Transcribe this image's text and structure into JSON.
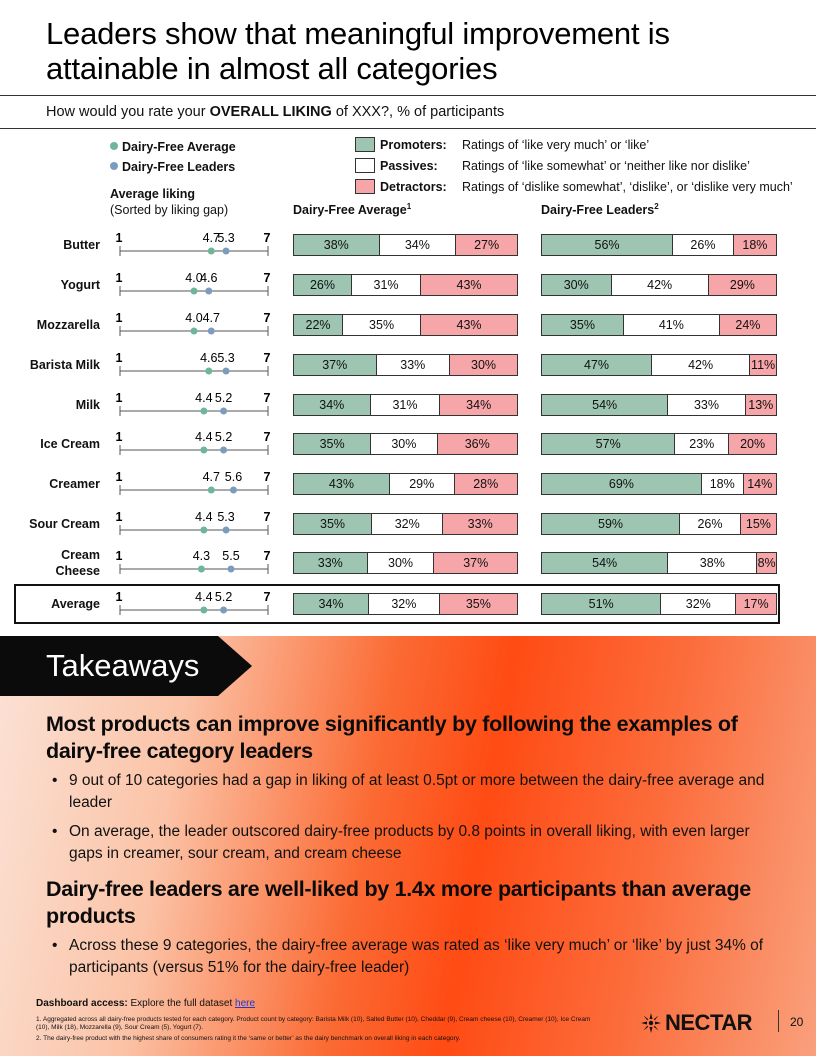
{
  "title": "Leaders show that meaningful improvement is attainable in almost all categories",
  "question": {
    "prefix": "How would you rate your ",
    "bold": "OVERALL LIKING",
    "suffix": " of XXX?, % of participants"
  },
  "legend": {
    "avg_dot": "Dairy-Free Average",
    "leader_dot": "Dairy-Free Leaders",
    "promoters": {
      "name": "Promoters:",
      "desc": "Ratings of ‘like very much’ or ‘like’"
    },
    "passives": {
      "name": "Passives:",
      "desc": "Ratings of ‘like somewhat’ or ‘neither like nor dislike’"
    },
    "detractors": {
      "name": "Detractors:",
      "desc": "Ratings of ‘dislike somewhat’, ‘dislike’, or ‘dislike very much’"
    }
  },
  "avg_liking_head": "Average liking",
  "avg_liking_sub": "(Sorted by liking gap)",
  "col_avg": "Dairy-Free Average",
  "col_avg_sup": "1",
  "col_lead": "Dairy-Free Leaders",
  "col_lead_sup": "2",
  "colors": {
    "promoter": "#9dc5b1",
    "passive": "#ffffff",
    "detractor": "#f6a5a8",
    "avg_dot": "#6fb59a",
    "leader_dot": "#7c9cbd"
  },
  "chart_data": {
    "type": "bar",
    "stacked": true,
    "scale_min": "1",
    "scale_max": "7",
    "rows": [
      {
        "category": "Butter",
        "avg_liking": 4.7,
        "lead_liking": 5.3,
        "avg_liking_label": "4.7",
        "lead_liking_label": "5.3",
        "avg": [
          38,
          34,
          27
        ],
        "lead": [
          56,
          26,
          18
        ],
        "avg_labels": [
          "38%",
          "34%",
          "27%"
        ],
        "lead_labels": [
          "56%",
          "26%",
          "18%"
        ]
      },
      {
        "category": "Yogurt",
        "avg_liking": 4.0,
        "lead_liking": 4.6,
        "avg_liking_label": "4.0",
        "lead_liking_label": "4.6",
        "avg": [
          26,
          31,
          43
        ],
        "lead": [
          30,
          42,
          29
        ],
        "avg_labels": [
          "26%",
          "31%",
          "43%"
        ],
        "lead_labels": [
          "30%",
          "42%",
          "29%"
        ]
      },
      {
        "category": "Mozzarella",
        "avg_liking": 4.0,
        "lead_liking": 4.7,
        "avg_liking_label": "4.0",
        "lead_liking_label": "4.7",
        "avg": [
          22,
          35,
          43
        ],
        "lead": [
          35,
          41,
          24
        ],
        "avg_labels": [
          "22%",
          "35%",
          "43%"
        ],
        "lead_labels": [
          "35%",
          "41%",
          "24%"
        ]
      },
      {
        "category": "Barista Milk",
        "avg_liking": 4.6,
        "lead_liking": 5.3,
        "avg_liking_label": "4.6",
        "lead_liking_label": "5.3",
        "avg": [
          37,
          33,
          30
        ],
        "lead": [
          47,
          42,
          11
        ],
        "avg_labels": [
          "37%",
          "33%",
          "30%"
        ],
        "lead_labels": [
          "47%",
          "42%",
          "11%"
        ]
      },
      {
        "category": "Milk",
        "avg_liking": 4.4,
        "lead_liking": 5.2,
        "avg_liking_label": "4.4",
        "lead_liking_label": "5.2",
        "avg": [
          34,
          31,
          34
        ],
        "lead": [
          54,
          33,
          13
        ],
        "avg_labels": [
          "34%",
          "31%",
          "34%"
        ],
        "lead_labels": [
          "54%",
          "33%",
          "13%"
        ]
      },
      {
        "category": "Ice Cream",
        "avg_liking": 4.4,
        "lead_liking": 5.2,
        "avg_liking_label": "4.4",
        "lead_liking_label": "5.2",
        "avg": [
          35,
          30,
          36
        ],
        "lead": [
          57,
          23,
          20
        ],
        "avg_labels": [
          "35%",
          "30%",
          "36%"
        ],
        "lead_labels": [
          "57%",
          "23%",
          "20%"
        ]
      },
      {
        "category": "Creamer",
        "avg_liking": 4.7,
        "lead_liking": 5.6,
        "avg_liking_label": "4.7",
        "lead_liking_label": "5.6",
        "avg": [
          43,
          29,
          28
        ],
        "lead": [
          69,
          18,
          14
        ],
        "avg_labels": [
          "43%",
          "29%",
          "28%"
        ],
        "lead_labels": [
          "69%",
          "18%",
          "14%"
        ]
      },
      {
        "category": "Sour Cream",
        "avg_liking": 4.4,
        "lead_liking": 5.3,
        "avg_liking_label": "4.4",
        "lead_liking_label": "5.3",
        "avg": [
          35,
          32,
          33
        ],
        "lead": [
          59,
          26,
          15
        ],
        "avg_labels": [
          "35%",
          "32%",
          "33%"
        ],
        "lead_labels": [
          "59%",
          "26%",
          "15%"
        ]
      },
      {
        "category": "Cream Cheese",
        "category_line1": "Cream",
        "category_line2": "Cheese",
        "avg_liking": 4.3,
        "lead_liking": 5.5,
        "avg_liking_label": "4.3",
        "lead_liking_label": "5.5",
        "avg": [
          33,
          30,
          37
        ],
        "lead": [
          54,
          38,
          8
        ],
        "avg_labels": [
          "33%",
          "30%",
          "37%"
        ],
        "lead_labels": [
          "54%",
          "38%",
          "8%"
        ]
      },
      {
        "category": "Average",
        "avg_liking": 4.4,
        "lead_liking": 5.2,
        "avg_liking_label": "4.4",
        "lead_liking_label": "5.2",
        "avg": [
          34,
          32,
          35
        ],
        "lead": [
          51,
          32,
          17
        ],
        "avg_labels": [
          "34%",
          "32%",
          "35%"
        ],
        "lead_labels": [
          "51%",
          "32%",
          "17%"
        ]
      }
    ]
  },
  "takeaways": {
    "title": "Takeaways",
    "head1": "Most products can improve significantly by following the examples of dairy-free category leaders",
    "bullet1": "9 out of 10 categories had a gap in liking of at least 0.5pt or more between the dairy-free average and leader",
    "bullet2": "On average, the leader outscored dairy-free products by 0.8 points in overall liking, with even larger gaps in creamer, sour cream, and cream cheese",
    "head2": "Dairy-free leaders are well-liked by 1.4x more participants than average products",
    "bullet3": "Across these 9 categories, the dairy-free average was rated as ‘like very much’ or ‘like’ by just 34% of participants (versus 51% for the dairy-free leader)"
  },
  "footer": {
    "dash_label": "Dashboard access:",
    "dash_text": " Explore the full dataset ",
    "dash_link": "here",
    "fn1": "1.   Aggregated across all dairy-free products tested for each category. Product count by category: Barista Milk (10), Salted Butter (10), Cheddar (9), Cream cheese (10), Creamer (10), Ice Cream (10), Milk (18), Mozzarella (9), Sour Cream (5), Yogurt (7).",
    "fn2": "2.   The dairy-free product with the highest share of consumers rating it the ‘same or better’ as the dairy benchmark on overall liking in each category.",
    "logo": "NECTAR",
    "page": "20"
  }
}
